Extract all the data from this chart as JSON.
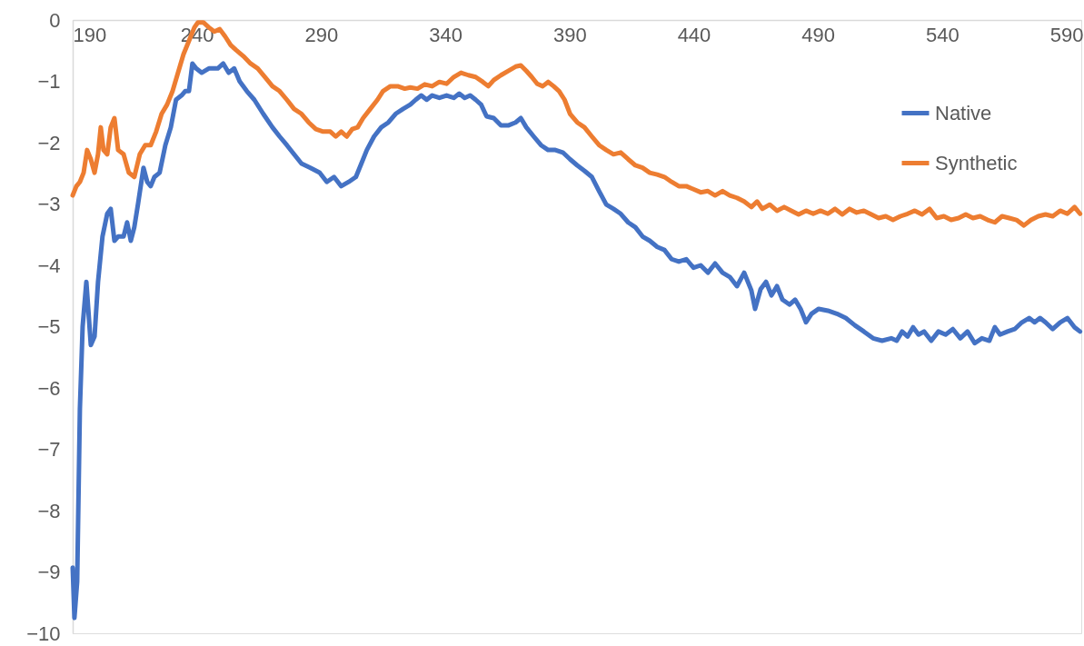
{
  "chart_data": {
    "type": "line",
    "xlim": [
      190,
      596
    ],
    "xticks": [
      190,
      240,
      290,
      340,
      390,
      440,
      490,
      540,
      590
    ],
    "ylim": [
      -10,
      0
    ],
    "yticks": [
      0,
      -1,
      -2,
      -3,
      -4,
      -5,
      -6,
      -7,
      -8,
      -9,
      -10
    ],
    "grid": false,
    "legend": "top right",
    "marker": "none",
    "line_style": "solid",
    "series": [
      {
        "name": "Native",
        "color": "#4472c4",
        "x": [
          190,
          190.7,
          191.8,
          192.9,
          194,
          195.5,
          197.3,
          198.8,
          200.2,
          202,
          203.9,
          205.3,
          206.8,
          208.3,
          210.5,
          211.9,
          213.4,
          214.8,
          216.3,
          218.5,
          220,
          221.4,
          222.9,
          225,
          227.3,
          229.5,
          231.6,
          233.8,
          235.3,
          236.8,
          238.2,
          239.7,
          241.9,
          244.8,
          248.4,
          250.6,
          252.8,
          255,
          257.2,
          260.1,
          263.1,
          266.7,
          270.4,
          273.3,
          276.2,
          279.1,
          282.1,
          285.7,
          289.4,
          292.3,
          295.2,
          298.1,
          301.1,
          304,
          306.2,
          308.4,
          311.3,
          314.2,
          317.1,
          320,
          323,
          325.9,
          328.1,
          330.3,
          332.5,
          334.7,
          337.6,
          340.5,
          343.4,
          345.6,
          347.8,
          350,
          352.2,
          354.4,
          356.6,
          359.5,
          362.4,
          365.3,
          368.3,
          370.4,
          372.6,
          375.6,
          378.5,
          381.4,
          384.3,
          387.3,
          390.2,
          393.1,
          396,
          399,
          401.9,
          404.8,
          407.7,
          410.6,
          413.6,
          416.5,
          419.4,
          422.3,
          425.3,
          428.2,
          431.1,
          434,
          437,
          439.9,
          442.8,
          445.7,
          448.6,
          451.6,
          454.5,
          457.4,
          460.3,
          463.2,
          464.7,
          466.9,
          469.1,
          471.3,
          473.5,
          475.7,
          478.6,
          480.8,
          483,
          485.2,
          487.4,
          490.3,
          494,
          497.6,
          501.2,
          504.9,
          508.5,
          512.2,
          515.8,
          519.5,
          521.7,
          523.9,
          526.1,
          528.3,
          530.5,
          532.7,
          535.6,
          538.5,
          541.4,
          544.3,
          547.3,
          550.2,
          553.1,
          556,
          559,
          561.2,
          563.3,
          566.3,
          569.2,
          572.1,
          575,
          577.2,
          579.4,
          581.6,
          584.5,
          587.5,
          590.4,
          593.3,
          595.5
        ],
        "values": [
          -8.93,
          -9.75,
          -9.16,
          -6.34,
          -5.0,
          -4.27,
          -5.3,
          -5.16,
          -4.27,
          -3.53,
          -3.16,
          -3.08,
          -3.6,
          -3.53,
          -3.53,
          -3.3,
          -3.6,
          -3.38,
          -3.0,
          -2.41,
          -2.64,
          -2.71,
          -2.56,
          -2.49,
          -2.04,
          -1.75,
          -1.3,
          -1.23,
          -1.16,
          -1.16,
          -0.71,
          -0.79,
          -0.86,
          -0.79,
          -0.79,
          -0.71,
          -0.86,
          -0.79,
          -1.0,
          -1.16,
          -1.3,
          -1.53,
          -1.75,
          -1.9,
          -2.04,
          -2.19,
          -2.34,
          -2.41,
          -2.49,
          -2.64,
          -2.56,
          -2.71,
          -2.64,
          -2.56,
          -2.34,
          -2.12,
          -1.9,
          -1.75,
          -1.67,
          -1.53,
          -1.45,
          -1.38,
          -1.3,
          -1.23,
          -1.3,
          -1.23,
          -1.27,
          -1.23,
          -1.27,
          -1.2,
          -1.27,
          -1.23,
          -1.3,
          -1.38,
          -1.57,
          -1.6,
          -1.72,
          -1.72,
          -1.67,
          -1.6,
          -1.75,
          -1.9,
          -2.04,
          -2.12,
          -2.12,
          -2.16,
          -2.27,
          -2.37,
          -2.46,
          -2.56,
          -2.79,
          -3.01,
          -3.08,
          -3.16,
          -3.3,
          -3.38,
          -3.53,
          -3.6,
          -3.7,
          -3.75,
          -3.9,
          -3.94,
          -3.9,
          -4.04,
          -4.0,
          -4.12,
          -3.97,
          -4.12,
          -4.19,
          -4.34,
          -4.12,
          -4.41,
          -4.71,
          -4.39,
          -4.27,
          -4.49,
          -4.34,
          -4.56,
          -4.64,
          -4.56,
          -4.71,
          -4.93,
          -4.79,
          -4.71,
          -4.74,
          -4.79,
          -4.86,
          -4.98,
          -5.08,
          -5.19,
          -5.23,
          -5.19,
          -5.23,
          -5.08,
          -5.16,
          -5.01,
          -5.13,
          -5.08,
          -5.23,
          -5.08,
          -5.13,
          -5.04,
          -5.19,
          -5.08,
          -5.27,
          -5.19,
          -5.23,
          -5.01,
          -5.13,
          -5.08,
          -5.04,
          -4.93,
          -4.86,
          -4.93,
          -4.86,
          -4.93,
          -5.04,
          -4.93,
          -4.86,
          -5.01,
          -5.08
        ]
      },
      {
        "name": "Synthetic",
        "color": "#ed7d31",
        "x": [
          190,
          191.5,
          192.9,
          194.4,
          195.8,
          197.3,
          198.8,
          200.2,
          201.3,
          202.4,
          203.9,
          205.3,
          206.8,
          208.3,
          210.5,
          212.6,
          214.8,
          217,
          219.2,
          221.4,
          223.6,
          225.8,
          228,
          230.2,
          232.4,
          234.6,
          236.8,
          239,
          240.4,
          242.6,
          244.8,
          247,
          249.2,
          251.4,
          253.6,
          255.8,
          258.7,
          261.6,
          264.5,
          267.4,
          270.4,
          273.3,
          276.2,
          279.1,
          282.1,
          285,
          287.9,
          290.8,
          293.7,
          295.9,
          298.1,
          300.3,
          302.5,
          304.7,
          306.9,
          309.8,
          312.7,
          314.9,
          317.9,
          320.8,
          323.7,
          325.9,
          328.8,
          331.7,
          334.7,
          337.6,
          340.5,
          343.4,
          346.3,
          349.3,
          352.2,
          355.1,
          357.3,
          359.5,
          362.4,
          365.3,
          368.3,
          370.4,
          372.6,
          374.8,
          377,
          379.2,
          381.4,
          383.6,
          385.8,
          388,
          390.2,
          393.1,
          396,
          399,
          401.9,
          404.8,
          407.7,
          410.6,
          413.6,
          416.5,
          419.4,
          422.3,
          425.3,
          428.2,
          431.1,
          434,
          437,
          439.9,
          442.8,
          445.7,
          448.6,
          451.6,
          454.5,
          457.4,
          460.3,
          463.2,
          465.5,
          467.6,
          470.6,
          473.5,
          476.4,
          479.3,
          482.2,
          485.2,
          488.1,
          491,
          494,
          496.9,
          499.8,
          502.7,
          505.6,
          508.5,
          511.5,
          514.4,
          517.3,
          520.2,
          523.2,
          526.1,
          529,
          531.9,
          534.9,
          537.8,
          540.7,
          543.6,
          546.6,
          549.5,
          552.4,
          555.3,
          558.3,
          561.2,
          564.1,
          567,
          569.9,
          572.9,
          575.8,
          578.7,
          581.6,
          584.5,
          587.5,
          590.4,
          593.3,
          595.5
        ],
        "values": [
          -2.86,
          -2.71,
          -2.64,
          -2.49,
          -2.12,
          -2.27,
          -2.49,
          -2.19,
          -1.75,
          -2.12,
          -2.19,
          -1.75,
          -1.6,
          -2.12,
          -2.19,
          -2.49,
          -2.56,
          -2.19,
          -2.04,
          -2.04,
          -1.82,
          -1.53,
          -1.38,
          -1.16,
          -0.86,
          -0.56,
          -0.34,
          -0.12,
          -0.04,
          -0.04,
          -0.12,
          -0.19,
          -0.15,
          -0.27,
          -0.41,
          -0.49,
          -0.59,
          -0.71,
          -0.79,
          -0.93,
          -1.08,
          -1.16,
          -1.3,
          -1.45,
          -1.53,
          -1.67,
          -1.78,
          -1.82,
          -1.82,
          -1.9,
          -1.82,
          -1.9,
          -1.78,
          -1.75,
          -1.6,
          -1.45,
          -1.3,
          -1.16,
          -1.08,
          -1.08,
          -1.12,
          -1.1,
          -1.12,
          -1.05,
          -1.08,
          -1.01,
          -1.04,
          -0.93,
          -0.86,
          -0.9,
          -0.93,
          -1.01,
          -1.08,
          -0.98,
          -0.9,
          -0.83,
          -0.76,
          -0.74,
          -0.83,
          -0.93,
          -1.04,
          -1.08,
          -1.01,
          -1.08,
          -1.16,
          -1.3,
          -1.53,
          -1.67,
          -1.75,
          -1.9,
          -2.04,
          -2.12,
          -2.19,
          -2.16,
          -2.27,
          -2.37,
          -2.41,
          -2.49,
          -2.52,
          -2.56,
          -2.64,
          -2.71,
          -2.71,
          -2.76,
          -2.81,
          -2.79,
          -2.86,
          -2.79,
          -2.86,
          -2.9,
          -2.96,
          -3.05,
          -2.96,
          -3.08,
          -3.01,
          -3.11,
          -3.05,
          -3.11,
          -3.17,
          -3.11,
          -3.16,
          -3.11,
          -3.16,
          -3.08,
          -3.17,
          -3.08,
          -3.14,
          -3.11,
          -3.17,
          -3.23,
          -3.2,
          -3.26,
          -3.2,
          -3.16,
          -3.11,
          -3.17,
          -3.08,
          -3.23,
          -3.2,
          -3.26,
          -3.23,
          -3.17,
          -3.23,
          -3.2,
          -3.26,
          -3.3,
          -3.2,
          -3.23,
          -3.26,
          -3.35,
          -3.26,
          -3.2,
          -3.17,
          -3.2,
          -3.11,
          -3.16,
          -3.05,
          -3.16
        ]
      }
    ]
  }
}
